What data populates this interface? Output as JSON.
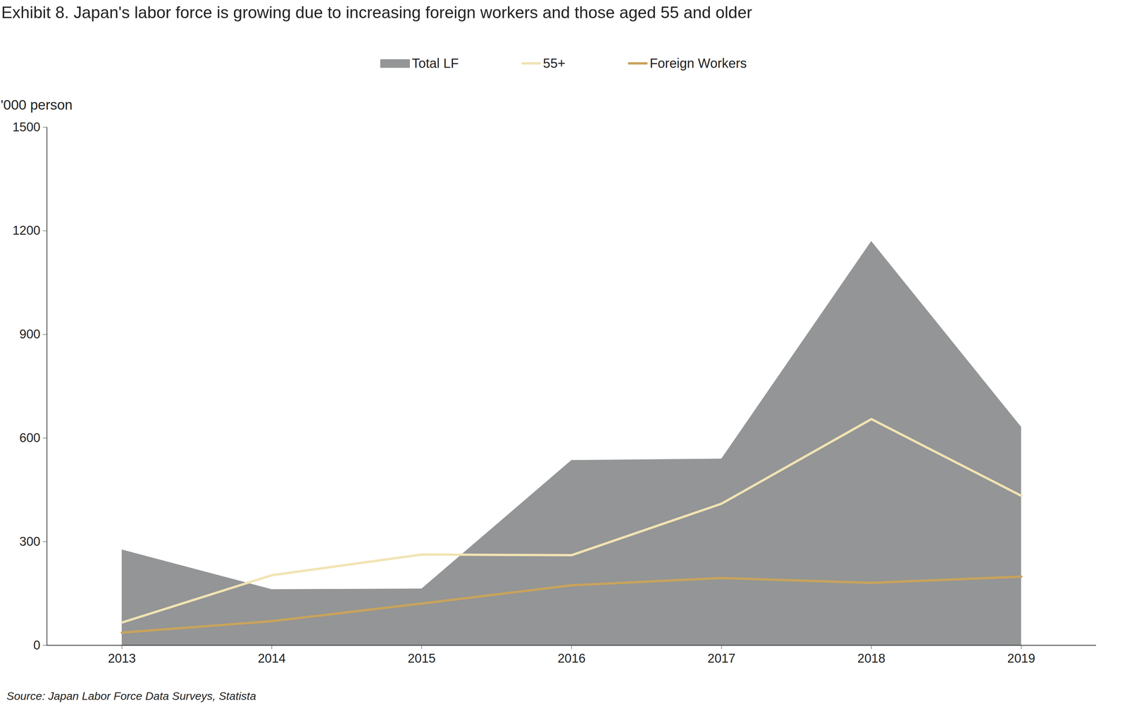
{
  "chart_data": {
    "type": "line",
    "title": "Exhibit 8. Japan's labor force is growing due to increasing foreign workers and those aged 55 and older",
    "y_label": "'000 person",
    "caption": "Source: Japan Labor Force Data Surveys, Statista",
    "x": [
      2013,
      2014,
      2015,
      2016,
      2017,
      2018,
      2019
    ],
    "xlim": [
      2012.5,
      2019.5
    ],
    "xticks": [
      2013,
      2014,
      2015,
      2016,
      2017,
      2018,
      2019
    ],
    "ylim": [
      0,
      1500
    ],
    "yticks": [
      0,
      300,
      600,
      900,
      1200,
      1500
    ],
    "grid": false,
    "legend": "top",
    "series": [
      {
        "name": "Total LF",
        "type": "area",
        "color": "#939596",
        "values": [
          277,
          162,
          164,
          536,
          540,
          1170,
          632
        ]
      },
      {
        "name": "55+",
        "type": "line",
        "color": "#f2e3b3",
        "values": [
          66,
          203,
          263,
          261,
          410,
          655,
          433
        ]
      },
      {
        "name": "Foreign Workers",
        "type": "line",
        "color": "#c9a35b",
        "values": [
          37,
          70,
          121,
          174,
          195,
          181,
          199
        ]
      }
    ]
  }
}
